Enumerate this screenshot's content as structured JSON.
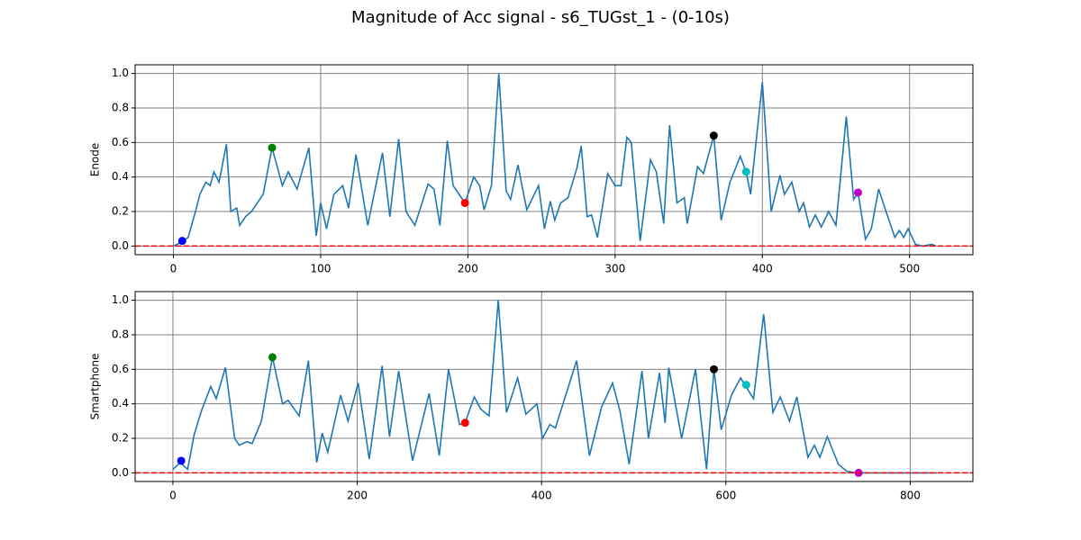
{
  "title": "Magnitude of Acc signal - s6_TUGst_1 - (0-10s)",
  "chart_data": [
    {
      "type": "line",
      "ylabel": "Enode",
      "x": [
        0,
        5,
        10,
        15,
        18,
        22,
        25,
        27.5,
        31,
        36,
        39,
        43,
        45,
        49,
        53,
        57,
        61,
        67,
        74,
        78,
        84,
        92,
        97,
        100,
        104,
        109,
        115,
        119,
        124,
        132,
        142,
        147,
        153,
        158,
        164,
        173,
        177,
        181,
        186,
        190,
        198,
        204,
        208,
        211,
        216,
        221,
        226,
        229,
        234,
        240,
        248,
        252,
        256,
        259,
        263,
        268,
        274,
        277,
        281,
        284,
        288,
        295,
        300,
        304,
        308,
        311,
        317,
        324,
        328,
        333,
        337,
        342,
        347,
        349,
        356,
        360,
        367,
        372,
        378,
        385,
        389,
        392,
        400,
        406,
        412,
        415,
        420,
        425,
        428,
        432,
        436,
        440,
        445,
        450,
        457,
        462,
        465,
        470,
        474,
        479,
        484,
        490,
        493,
        496,
        499,
        504,
        509,
        515,
        518
      ],
      "series": [
        {
          "color": "#1f77b4",
          "values": [
            0,
            0.02,
            0.05,
            0.2,
            0.3,
            0.37,
            0.35,
            0.43,
            0.37,
            0.59,
            0.2,
            0.22,
            0.12,
            0.17,
            0.2,
            0.25,
            0.3,
            0.57,
            0.35,
            0.43,
            0.33,
            0.57,
            0.06,
            0.25,
            0.1,
            0.3,
            0.35,
            0.22,
            0.53,
            0.12,
            0.54,
            0.17,
            0.62,
            0.2,
            0.12,
            0.36,
            0.33,
            0.12,
            0.61,
            0.35,
            0.25,
            0.4,
            0.35,
            0.21,
            0.35,
            1.0,
            0.32,
            0.27,
            0.47,
            0.21,
            0.35,
            0.1,
            0.26,
            0.15,
            0.25,
            0.28,
            0.45,
            0.58,
            0.17,
            0.18,
            0.05,
            0.42,
            0.35,
            0.35,
            0.63,
            0.6,
            0.03,
            0.5,
            0.43,
            0.13,
            0.7,
            0.25,
            0.28,
            0.13,
            0.46,
            0.42,
            0.64,
            0.15,
            0.37,
            0.52,
            0.43,
            0.3,
            0.95,
            0.2,
            0.41,
            0.3,
            0.37,
            0.2,
            0.25,
            0.11,
            0.18,
            0.11,
            0.2,
            0.12,
            0.75,
            0.27,
            0.31,
            0.04,
            0.1,
            0.33,
            0.2,
            0.05,
            0.09,
            0.05,
            0.1,
            0.01,
            0,
            0.01,
            0
          ]
        }
      ],
      "markers": {
        "x": [
          6,
          67,
          198,
          367,
          389,
          465
        ],
        "y": [
          0.03,
          0.57,
          0.25,
          0.64,
          0.43,
          0.31
        ],
        "colors": [
          "#0000ff",
          "#008000",
          "#ff0000",
          "#000000",
          "#00bfbf",
          "#bf00bf"
        ]
      },
      "hline": {
        "value": 0,
        "color": "#ff0000"
      },
      "xlim": [
        -26,
        543
      ],
      "ylim": [
        -0.05,
        1.05
      ],
      "xticks": [
        0,
        100,
        200,
        300,
        400,
        500
      ],
      "yticks": [
        {
          "value": 0,
          "label": "0.0"
        },
        0.2,
        0.4,
        0.6,
        0.8,
        {
          "value": 1,
          "label": "1.0"
        }
      ],
      "grid": true
    },
    {
      "type": "line",
      "ylabel": "Smartphone",
      "x": [
        0,
        8,
        16,
        23,
        31,
        41,
        47,
        57,
        67,
        72,
        80,
        86,
        96,
        108,
        119,
        125,
        137,
        147,
        156,
        162,
        168,
        182,
        190,
        201,
        213,
        227,
        235,
        245,
        260,
        278,
        289,
        299,
        311,
        317,
        327,
        334,
        343,
        353,
        362,
        374,
        383,
        395,
        401,
        409,
        415,
        438,
        452,
        465,
        477,
        485,
        495,
        509,
        516,
        528,
        534,
        538,
        552,
        567,
        579,
        587,
        595,
        606,
        616,
        624,
        630,
        641,
        651,
        659,
        669,
        677,
        689,
        696,
        702,
        710,
        722,
        731,
        741,
        829
      ],
      "series": [
        {
          "color": "#1f77b4",
          "values": [
            0.02,
            0.06,
            0.02,
            0.22,
            0.36,
            0.5,
            0.43,
            0.61,
            0.2,
            0.16,
            0.18,
            0.17,
            0.3,
            0.67,
            0.4,
            0.42,
            0.33,
            0.65,
            0.06,
            0.23,
            0.12,
            0.45,
            0.3,
            0.52,
            0.08,
            0.62,
            0.21,
            0.59,
            0.07,
            0.46,
            0.1,
            0.6,
            0.28,
            0.29,
            0.44,
            0.37,
            0.33,
            1.0,
            0.35,
            0.55,
            0.34,
            0.4,
            0.2,
            0.28,
            0.26,
            0.65,
            0.1,
            0.38,
            0.52,
            0.36,
            0.05,
            0.59,
            0.2,
            0.58,
            0.29,
            0.61,
            0.2,
            0.6,
            0.02,
            0.6,
            0.25,
            0.45,
            0.55,
            0.48,
            0.43,
            0.92,
            0.35,
            0.44,
            0.3,
            0.44,
            0.09,
            0.16,
            0.09,
            0.21,
            0.05,
            0.01,
            0,
            0
          ]
        }
      ],
      "markers": {
        "x": [
          9,
          108,
          317,
          587,
          622,
          744
        ],
        "y": [
          0.07,
          0.67,
          0.29,
          0.6,
          0.51,
          0
        ],
        "colors": [
          "#0000ff",
          "#008000",
          "#ff0000",
          "#000000",
          "#00bfbf",
          "#bf00bf"
        ]
      },
      "hline": {
        "value": 0,
        "color": "#ff0000"
      },
      "xlim": [
        -41,
        868
      ],
      "ylim": [
        -0.05,
        1.05
      ],
      "xticks": [
        0,
        200,
        400,
        600,
        800
      ],
      "yticks": [
        {
          "value": 0,
          "label": "0.0"
        },
        0.2,
        0.4,
        0.6,
        0.8,
        {
          "value": 1,
          "label": "1.0"
        }
      ],
      "grid": true
    }
  ]
}
